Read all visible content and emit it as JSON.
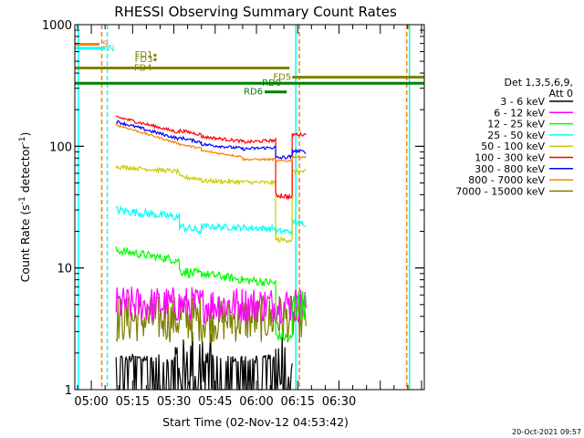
{
  "chart_data": {
    "type": "line",
    "title": "RHESSI Observing Summary Count Rates",
    "xlabel": "Start Time (02-Nov-12 04:53:42)",
    "ylabel_main": "Count Rate (s",
    "ylabel_sup": "-1",
    "ylabel_mid": " detector",
    "ylabel_sup2": "-1",
    "ylabel_end": ")",
    "yscale": "log",
    "ylim": [
      1,
      1000
    ],
    "xlim_minutes": [
      -6,
      121
    ],
    "x_tick_labels": [
      {
        "label": "05:00",
        "minute": 0
      },
      {
        "label": "05:15",
        "minute": 15
      },
      {
        "label": "05:30",
        "minute": 30
      },
      {
        "label": "05:45",
        "minute": 45
      },
      {
        "label": "06:00",
        "minute": 60
      },
      {
        "label": "06:15",
        "minute": 75
      },
      {
        "label": "06:30",
        "minute": 90
      }
    ],
    "y_tick_labels": [
      {
        "label": "1000",
        "value": 1000
      },
      {
        "label": "100",
        "value": 100
      },
      {
        "label": "10",
        "value": 10
      },
      {
        "label": "1",
        "value": 1
      }
    ],
    "legend": {
      "header": [
        "Det 1,3,5,6,9,",
        "Att 0"
      ],
      "entries": [
        {
          "label": "3 - 6 keV",
          "color": "#000000"
        },
        {
          "label": "6 - 12 keV",
          "color": "#ff00ff"
        },
        {
          "label": "12 - 25 keV",
          "color": "#00ff00"
        },
        {
          "label": "25 - 50 keV",
          "color": "#00ffff"
        },
        {
          "label": "50 - 100 keV",
          "color": "#cccc00"
        },
        {
          "label": "100 - 300 keV",
          "color": "#ff0000"
        },
        {
          "label": "300 - 800 keV",
          "color": "#0000ff"
        },
        {
          "label": "800 - 7000 keV",
          "color": "#ff8000"
        },
        {
          "label": "7000 - 15000 keV",
          "color": "#808000"
        }
      ]
    },
    "flags": [
      {
        "label": "S",
        "color": "#ff8000",
        "start": -6,
        "end": 3,
        "level": 690
      },
      {
        "label": "N",
        "color": "#00ffff",
        "start": -6,
        "end": 5,
        "level": 640
      },
      {
        "label": "FD1",
        "color": "#808000",
        "start": 23,
        "end": 23,
        "level": 565
      },
      {
        "label": "FD3",
        "color": "#808000",
        "start": 23,
        "end": 23,
        "level": 520
      },
      {
        "label": "FD4",
        "color": "#808000",
        "start": -6,
        "end": 72,
        "level": 440
      },
      {
        "label": "FD5",
        "color": "#808000",
        "start": 73,
        "end": 121,
        "level": 370
      },
      {
        "label": "RD0",
        "color": "#008000",
        "start": -6,
        "end": 121,
        "level": 330
      },
      {
        "label": "RD6",
        "color": "#008000",
        "start": 63,
        "end": 71,
        "level": 280
      }
    ],
    "series": [
      {
        "name": "3 - 6 keV",
        "color": "#000000",
        "segments": [
          {
            "x": [
              9,
              30.5
            ],
            "y": [
              1.8,
              1.8
            ],
            "noise": 0.08
          },
          {
            "x": [
              30.5,
              44
            ],
            "y": [
              1.8,
              1.8
            ],
            "noise": 0.6
          },
          {
            "x": [
              44,
              67
            ],
            "y": [
              1.8,
              1.8
            ],
            "noise": 0.08
          },
          {
            "x": [
              67,
              73
            ],
            "y": [
              1.8,
              1.8
            ],
            "noise": 0.6
          }
        ]
      },
      {
        "name": "6 - 12 keV",
        "color": "#ff00ff",
        "segments": [
          {
            "x": [
              9,
              78
            ],
            "y": [
              5.0,
              5.0
            ],
            "noise": 0.35
          }
        ]
      },
      {
        "name": "12 - 25 keV",
        "color": "#00ff00",
        "segments": [
          {
            "x": [
              9,
              32
            ],
            "y": [
              14,
              11.5
            ],
            "noise": 0.08
          },
          {
            "x": [
              32,
              40
            ],
            "y": [
              9.5,
              8.8
            ],
            "noise": 0.1
          },
          {
            "x": [
              40,
              55
            ],
            "y": [
              9.0,
              8.0
            ],
            "noise": 0.08
          },
          {
            "x": [
              55,
              67
            ],
            "y": [
              8.0,
              7.5
            ],
            "noise": 0.08
          },
          {
            "x": [
              67,
              73
            ],
            "y": [
              2.8,
              2.6
            ],
            "noise": 0.1
          },
          {
            "x": [
              73,
              78
            ],
            "y": [
              5.0,
              5.0
            ],
            "noise": 0.3
          }
        ]
      },
      {
        "name": "25 - 50 keV",
        "color": "#00ffff",
        "segments": [
          {
            "x": [
              9,
              32
            ],
            "y": [
              30,
              26
            ],
            "noise": 0.08
          },
          {
            "x": [
              32,
              40
            ],
            "y": [
              22,
              20
            ],
            "noise": 0.08
          },
          {
            "x": [
              40,
              67
            ],
            "y": [
              22,
              21
            ],
            "noise": 0.06
          },
          {
            "x": [
              67,
              73
            ],
            "y": [
              20,
              20
            ],
            "noise": 0.06
          },
          {
            "x": [
              73,
              78
            ],
            "y": [
              24,
              23
            ],
            "noise": 0.05
          }
        ]
      },
      {
        "name": "50 - 100 keV",
        "color": "#cccc00",
        "segments": [
          {
            "x": [
              9,
              32
            ],
            "y": [
              68,
              62
            ],
            "noise": 0.04
          },
          {
            "x": [
              32,
              40
            ],
            "y": [
              56,
              54
            ],
            "noise": 0.04
          },
          {
            "x": [
              40,
              67
            ],
            "y": [
              52,
              50
            ],
            "noise": 0.04
          },
          {
            "x": [
              67,
              73
            ],
            "y": [
              17,
              17
            ],
            "noise": 0.05
          },
          {
            "x": [
              73,
              78
            ],
            "y": [
              62,
              62
            ],
            "noise": 0.04
          }
        ]
      },
      {
        "name": "100 - 300 keV",
        "color": "#ff0000",
        "segments": [
          {
            "x": [
              9,
              32
            ],
            "y": [
              175,
              130
            ],
            "noise": 0.03
          },
          {
            "x": [
              32,
              40
            ],
            "y": [
              135,
              125
            ],
            "noise": 0.03
          },
          {
            "x": [
              40,
              55
            ],
            "y": [
              120,
              110
            ],
            "noise": 0.03
          },
          {
            "x": [
              55,
              67
            ],
            "y": [
              108,
              112
            ],
            "noise": 0.03
          },
          {
            "x": [
              67,
              73
            ],
            "y": [
              40,
              38
            ],
            "noise": 0.05
          },
          {
            "x": [
              73,
              78
            ],
            "y": [
              125,
              125
            ],
            "noise": 0.03
          }
        ]
      },
      {
        "name": "300 - 800 keV",
        "color": "#0000ff",
        "segments": [
          {
            "x": [
              9,
              32
            ],
            "y": [
              160,
              115
            ],
            "noise": 0.03
          },
          {
            "x": [
              32,
              40
            ],
            "y": [
              118,
              108
            ],
            "noise": 0.03
          },
          {
            "x": [
              40,
              55
            ],
            "y": [
              104,
              96
            ],
            "noise": 0.03
          },
          {
            "x": [
              55,
              67
            ],
            "y": [
              95,
              98
            ],
            "noise": 0.03
          },
          {
            "x": [
              67,
              73
            ],
            "y": [
              80,
              82
            ],
            "noise": 0.04
          },
          {
            "x": [
              73,
              78
            ],
            "y": [
              92,
              90
            ],
            "noise": 0.03
          }
        ]
      },
      {
        "name": "800 - 7000 keV",
        "color": "#ff8000",
        "segments": [
          {
            "x": [
              9,
              32
            ],
            "y": [
              150,
              105
            ],
            "noise": 0.02
          },
          {
            "x": [
              32,
              40
            ],
            "y": [
              104,
              96
            ],
            "noise": 0.02
          },
          {
            "x": [
              40,
              55
            ],
            "y": [
              92,
              82
            ],
            "noise": 0.02
          },
          {
            "x": [
              55,
              67
            ],
            "y": [
              78,
              78
            ],
            "noise": 0.02
          },
          {
            "x": [
              67,
              73
            ],
            "y": [
              76,
              76
            ],
            "noise": 0.02
          },
          {
            "x": [
              73,
              78
            ],
            "y": [
              82,
              82
            ],
            "noise": 0.02
          }
        ]
      },
      {
        "name": "7000 - 15000 keV",
        "color": "#808000",
        "segments": [
          {
            "x": [
              9,
              78
            ],
            "y": [
              3.8,
              3.8
            ],
            "noise": 0.45
          }
        ]
      }
    ],
    "vertical_markers": [
      {
        "minute": -4.7,
        "color": "#00ffff",
        "style": "solid"
      },
      {
        "minute": 3.8,
        "color": "#ff8000",
        "style": "dashed"
      },
      {
        "minute": 5.8,
        "color": "#00ffff",
        "style": "dashed"
      },
      {
        "minute": 74.3,
        "color": "#00ffff",
        "style": "solid"
      },
      {
        "minute": 75.6,
        "color": "#ff8000",
        "style": "dashed"
      },
      {
        "minute": 114.6,
        "color": "#ff8000",
        "style": "dashed"
      },
      {
        "minute": 115.6,
        "color": "#00ffff",
        "style": "solid"
      }
    ],
    "grid": false,
    "legend_position": "right"
  },
  "footer": {
    "timestamp": "20-Oct-2021 09:57"
  }
}
